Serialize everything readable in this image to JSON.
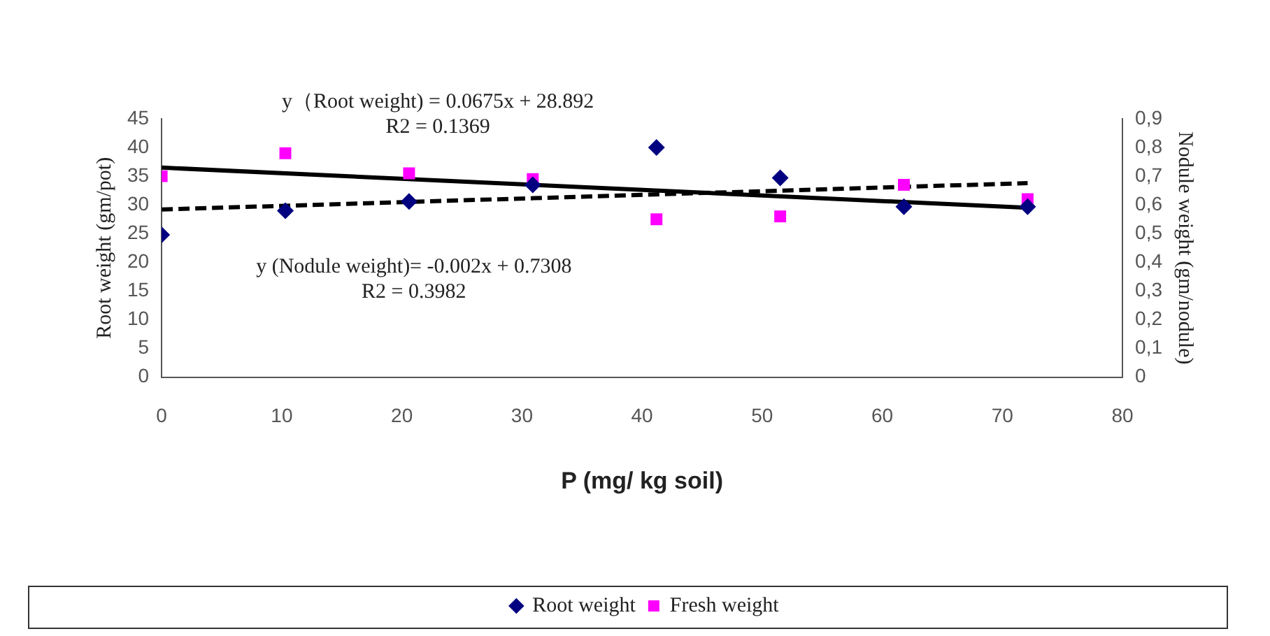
{
  "chart_data": {
    "type": "scatter",
    "xlabel": "P (mg/ kg soil)",
    "ylabel": "Root weight (gm/pot)",
    "y2label": "Nodule weight (gm/nodule)",
    "xlim": [
      0,
      80
    ],
    "xticks": [
      0,
      10,
      20,
      30,
      40,
      50,
      60,
      70,
      80
    ],
    "ylim": [
      0,
      45
    ],
    "yticks": [
      0,
      5,
      10,
      15,
      20,
      25,
      30,
      35,
      40,
      45
    ],
    "y2lim": [
      0,
      0.9
    ],
    "y2ticks": [
      0,
      {
        "value": 0.1,
        "label": "0,1"
      },
      {
        "value": 0.2,
        "label": "0,2"
      },
      {
        "value": 0.3,
        "label": "0,3"
      },
      {
        "value": 0.4,
        "label": "0,4"
      },
      {
        "value": 0.5,
        "label": "0,5"
      },
      {
        "value": 0.6,
        "label": "0,6"
      },
      {
        "value": 0.7,
        "label": "0,7"
      },
      {
        "value": 0.8,
        "label": "0,8"
      },
      {
        "value": 0.9,
        "label": "0,9"
      }
    ],
    "grid": false,
    "legend": "bottom",
    "annotations": [
      "y（Root weight) = 0.0675x + 28.892",
      "R2 = 0.1369",
      "y (Nodule weight)= -0.002x + 0.7308",
      "R2 = 0.3982"
    ],
    "series": [
      {
        "name": "Root weight",
        "type": "scatter",
        "marker": "diamond",
        "color": "#000080",
        "axis": "y",
        "x": [
          0,
          10.3,
          20.6,
          30.9,
          41.2,
          51.5,
          61.8,
          72.1
        ],
        "values": [
          24.8,
          29,
          30.6,
          33.5,
          40,
          34.7,
          29.7,
          29.7
        ]
      },
      {
        "name": "Fresh weight",
        "type": "scatter",
        "marker": "square",
        "color": "#ff00ff",
        "axis": "y2",
        "x": [
          0,
          10.3,
          20.6,
          30.9,
          41.2,
          51.5,
          61.8,
          72.1
        ],
        "values": [
          0.7,
          0.78,
          0.71,
          0.69,
          0.55,
          0.56,
          0.67,
          0.62
        ]
      },
      {
        "type": "line",
        "line_style": "dashed",
        "marker": "none",
        "color": "#000000",
        "axis": "y",
        "x": [
          0,
          72.1
        ],
        "values": [
          29.2,
          33.8
        ]
      },
      {
        "type": "line",
        "line_style": "solid",
        "marker": "none",
        "color": "#000000",
        "axis": "y2",
        "x": [
          0,
          72.1
        ],
        "values": [
          0.73,
          0.59
        ]
      }
    ]
  }
}
